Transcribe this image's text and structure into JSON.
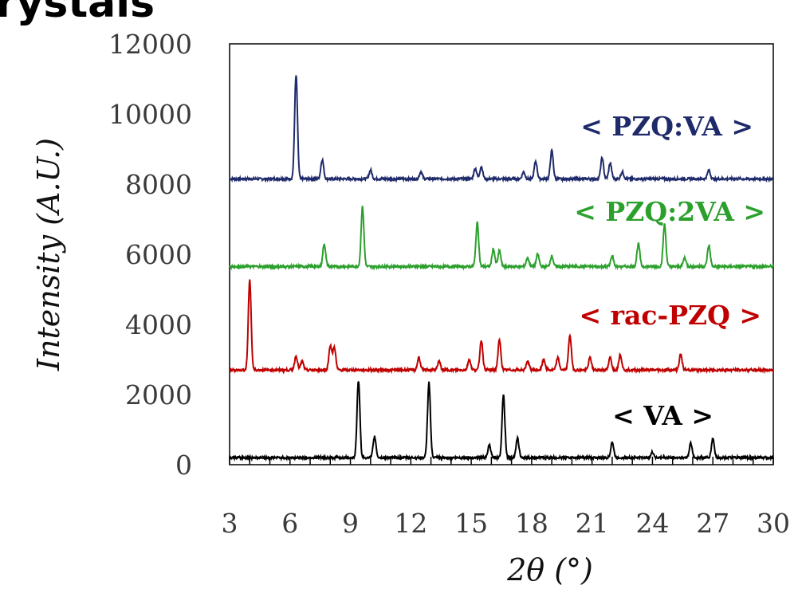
{
  "page": {
    "title_fragment": "crystals"
  },
  "chart_data": {
    "type": "line",
    "title": "",
    "xlabel": "2θ (°)",
    "ylabel": "Intensity (A.U.)",
    "xlim": [
      3,
      30
    ],
    "ylim": [
      0,
      12000
    ],
    "x_ticks": [
      "3",
      "6",
      "9",
      "12",
      "15",
      "18",
      "21",
      "24",
      "27",
      "30"
    ],
    "y_ticks": [
      "0",
      "2000",
      "4000",
      "6000",
      "8000",
      "10000",
      "12000"
    ],
    "grid": false,
    "series": [
      {
        "name": "< PZQ:VA >",
        "color": "#1f2a6b",
        "baseline": 8150,
        "peaks": [
          [
            6.3,
            2950
          ],
          [
            7.6,
            550
          ],
          [
            10.0,
            250
          ],
          [
            12.5,
            200
          ],
          [
            15.2,
            300
          ],
          [
            15.5,
            350
          ],
          [
            17.6,
            200
          ],
          [
            18.2,
            500
          ],
          [
            19.0,
            800
          ],
          [
            21.5,
            600
          ],
          [
            21.9,
            450
          ],
          [
            22.5,
            200
          ],
          [
            26.8,
            250
          ]
        ]
      },
      {
        "name": "< PZQ:2VA >",
        "color": "#2ca02c",
        "baseline": 5650,
        "peaks": [
          [
            7.7,
            650
          ],
          [
            9.6,
            1700
          ],
          [
            15.3,
            1250
          ],
          [
            16.1,
            500
          ],
          [
            16.4,
            450
          ],
          [
            17.8,
            250
          ],
          [
            18.3,
            350
          ],
          [
            19.0,
            300
          ],
          [
            22.0,
            300
          ],
          [
            23.3,
            650
          ],
          [
            24.6,
            1200
          ],
          [
            25.6,
            250
          ],
          [
            26.8,
            600
          ]
        ]
      },
      {
        "name": "< rac-PZQ >",
        "color": "#c00000",
        "baseline": 2700,
        "peaks": [
          [
            4.0,
            2550
          ],
          [
            6.3,
            400
          ],
          [
            6.6,
            250
          ],
          [
            8.0,
            700
          ],
          [
            8.2,
            650
          ],
          [
            12.4,
            350
          ],
          [
            13.4,
            250
          ],
          [
            14.9,
            300
          ],
          [
            15.5,
            850
          ],
          [
            16.4,
            850
          ],
          [
            17.8,
            250
          ],
          [
            18.6,
            300
          ],
          [
            19.3,
            350
          ],
          [
            19.9,
            1000
          ],
          [
            20.9,
            350
          ],
          [
            21.9,
            350
          ],
          [
            22.4,
            450
          ],
          [
            25.4,
            450
          ]
        ]
      },
      {
        "name": "< VA >",
        "color": "#000000",
        "baseline": 200,
        "peaks": [
          [
            9.4,
            2200
          ],
          [
            10.2,
            600
          ],
          [
            12.9,
            2150
          ],
          [
            16.6,
            1800
          ],
          [
            17.3,
            550
          ],
          [
            15.9,
            350
          ],
          [
            22.0,
            450
          ],
          [
            24.0,
            150
          ],
          [
            25.9,
            400
          ],
          [
            27.0,
            550
          ]
        ]
      }
    ]
  }
}
